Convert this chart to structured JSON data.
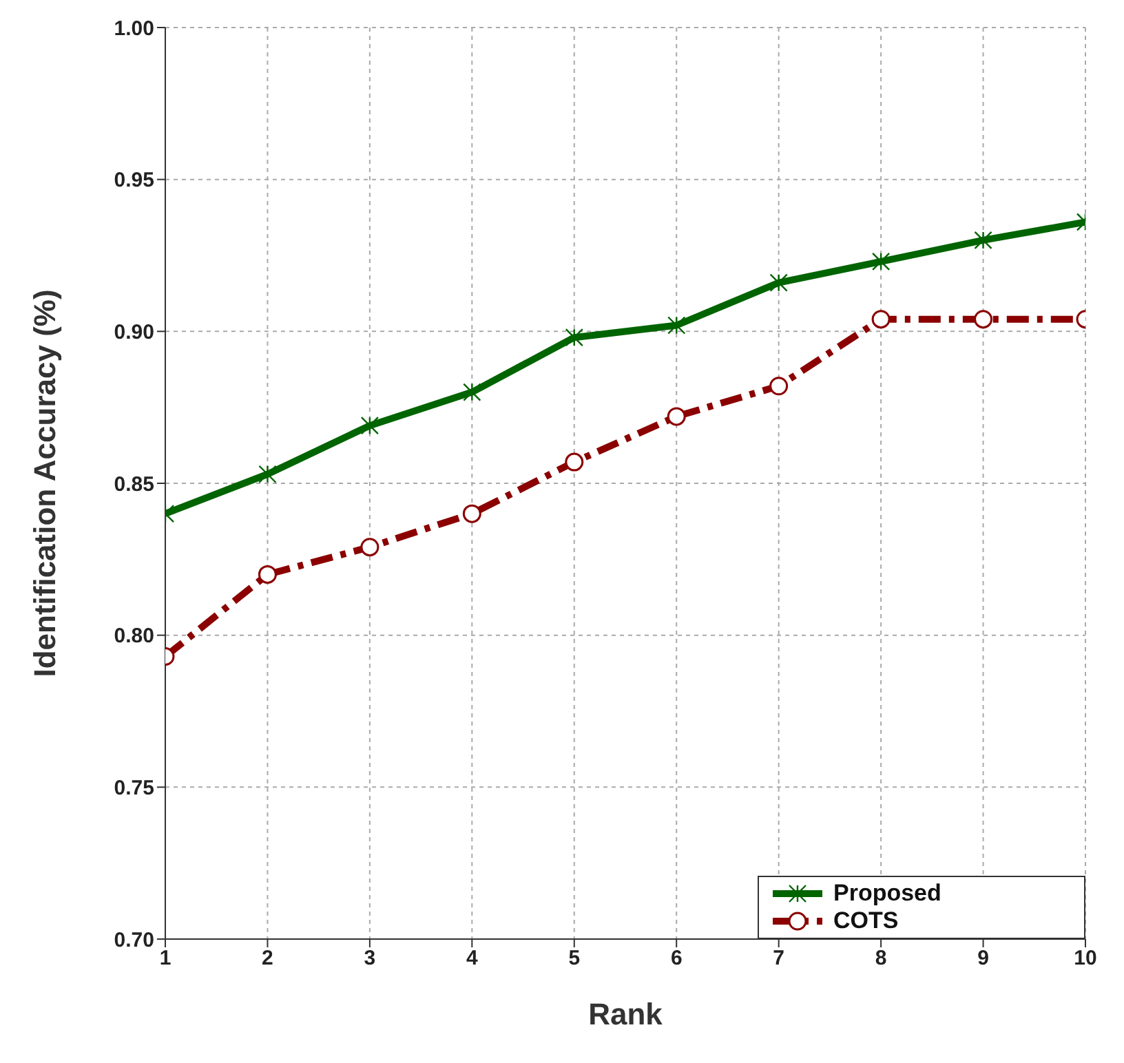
{
  "chart_data": {
    "type": "line",
    "xlabel": "Rank",
    "ylabel": "Identification Accuracy (%)",
    "x": [
      1,
      2,
      3,
      4,
      5,
      6,
      7,
      8,
      9,
      10
    ],
    "series": [
      {
        "name": "Proposed",
        "color": "#006400",
        "marker": "cross",
        "line_style": "solid",
        "values": [
          0.84,
          0.853,
          0.869,
          0.88,
          0.898,
          0.902,
          0.916,
          0.923,
          0.93,
          0.936
        ]
      },
      {
        "name": "COTS",
        "color": "#8b0000",
        "marker": "circle",
        "line_style": "dashed",
        "values": [
          0.793,
          0.82,
          0.829,
          0.84,
          0.857,
          0.872,
          0.882,
          0.904,
          0.904,
          0.904
        ]
      }
    ],
    "xlim": [
      1,
      10
    ],
    "xticks": [
      1,
      2,
      3,
      4,
      5,
      6,
      7,
      8,
      9,
      10
    ],
    "ylim": [
      0.7,
      1.0
    ],
    "yticks": [
      {
        "value": 0.7,
        "label": "0.70"
      },
      0.75,
      {
        "value": 0.8,
        "label": "0.80"
      },
      0.85,
      {
        "value": 0.9,
        "label": "0.90"
      },
      0.95,
      {
        "value": 1.0,
        "label": "1.00"
      }
    ],
    "grid": true,
    "legend": "bottom right"
  }
}
